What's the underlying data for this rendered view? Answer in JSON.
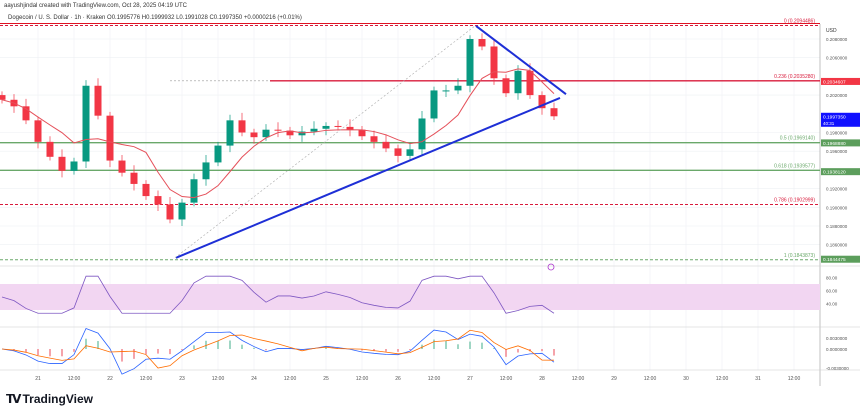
{
  "header": {
    "created": "aayushjindal created with TradingView.com, Oct 28, 2025 04:19 UTC",
    "symbol": "Dogecoin / U. S. Dollar · 1h · Kraken  O0.1995776  H0.1999932  L0.1991028  C0.1997350  +0.0000216 (+0.01%)"
  },
  "footer": {
    "brand": "TradingView"
  },
  "colors": {
    "up": "#089981",
    "down": "#f23645",
    "fib_red": "#d81b3c",
    "fib_green": "#6aa86a",
    "trend": "#1e2fd6",
    "ma": "#e5505a",
    "rsi_band": "#f2d6f2",
    "last": "#1010ff"
  },
  "chart_data": {
    "type": "candlestick",
    "currency": "USD",
    "y_ticks": [
      "0.2080000",
      "0.2060000",
      "0.2020000",
      "0.1980000",
      "0.1960000",
      "0.1920000",
      "0.1900000",
      "0.1880000",
      "0.1860000"
    ],
    "y_tick_values": [
      0.208,
      0.206,
      0.202,
      0.198,
      0.196,
      0.192,
      0.19,
      0.188,
      0.186
    ],
    "x_ticks": [
      "21",
      "12:00",
      "22",
      "12:00",
      "23",
      "12:00",
      "24",
      "12:00",
      "25",
      "12:00",
      "26",
      "12:00",
      "27",
      "12:00",
      "28",
      "12:00",
      "29",
      "12:00",
      "30",
      "12:00",
      "31",
      "12:00"
    ],
    "candle_interval": "4h",
    "first_candle": "Oct 20 12:00",
    "closes": [
      0.2015,
      0.2008,
      0.1993,
      0.197,
      0.1954,
      0.1939,
      0.1949,
      0.203,
      0.1998,
      0.195,
      0.1937,
      0.1925,
      0.1912,
      0.1903,
      0.1887,
      0.1905,
      0.193,
      0.1948,
      0.1966,
      0.1993,
      0.198,
      0.1975,
      0.1983,
      0.1982,
      0.1977,
      0.1981,
      0.1984,
      0.1987,
      0.1986,
      0.1983,
      0.1976,
      0.197,
      0.1963,
      0.1955,
      0.1962,
      0.1995,
      0.2025,
      0.2025,
      0.203,
      0.208,
      0.2072,
      0.2038,
      0.2022,
      0.2046,
      0.202,
      0.2006,
      0.199735
    ],
    "fib_levels": [
      {
        "label": "0 (0.2094486)",
        "value": 0.2094486,
        "color": "red",
        "dash": true
      },
      {
        "label": "0.236 (0.2035280)",
        "value": 0.203528,
        "color": "red",
        "dash": false
      },
      {
        "label": "0.5 (0.1969140)",
        "value": 0.196914,
        "color": "green",
        "dash": false
      },
      {
        "label": "0.618 (0.1939577)",
        "value": 0.1939577,
        "color": "green",
        "dash": false
      },
      {
        "label": "0.786 (0.1902999)",
        "value": 0.1902999,
        "color": "red",
        "dash": true
      },
      {
        "label": "1 (0.1843873)",
        "value": 0.1843873,
        "color": "green",
        "dash": true
      }
    ],
    "price_labels": [
      {
        "text": "0.2034607",
        "value": 0.2034607,
        "bg": "#f23645"
      },
      {
        "text": "0.1997350",
        "sub": "40:31",
        "value": 0.199735,
        "bg": "#1010ff"
      },
      {
        "text": "0.1968880",
        "value": 0.196888,
        "bg": "#5c9e5c"
      },
      {
        "text": "0.1938120",
        "value": 0.193812,
        "bg": "#5c9e5c"
      },
      {
        "text": "0.1844475",
        "value": 0.1844475,
        "bg": "#5c9e5c"
      }
    ],
    "trendlines": [
      {
        "name": "rising support",
        "from": [
          "Oct 22 22:00",
          0.1846
        ],
        "to": [
          "Oct 28 06:00",
          0.2017
        ]
      },
      {
        "name": "falling resistance",
        "from": [
          "Oct 27 02:00",
          0.2094
        ],
        "to": [
          "Oct 28 08:00",
          0.2021
        ]
      }
    ],
    "rsi": {
      "ticks": [
        "80.00",
        "60.00",
        "40.00"
      ]
    },
    "macd": {
      "ticks": [
        "0.0030000",
        "0.0000000",
        "-0.0030000"
      ]
    }
  }
}
